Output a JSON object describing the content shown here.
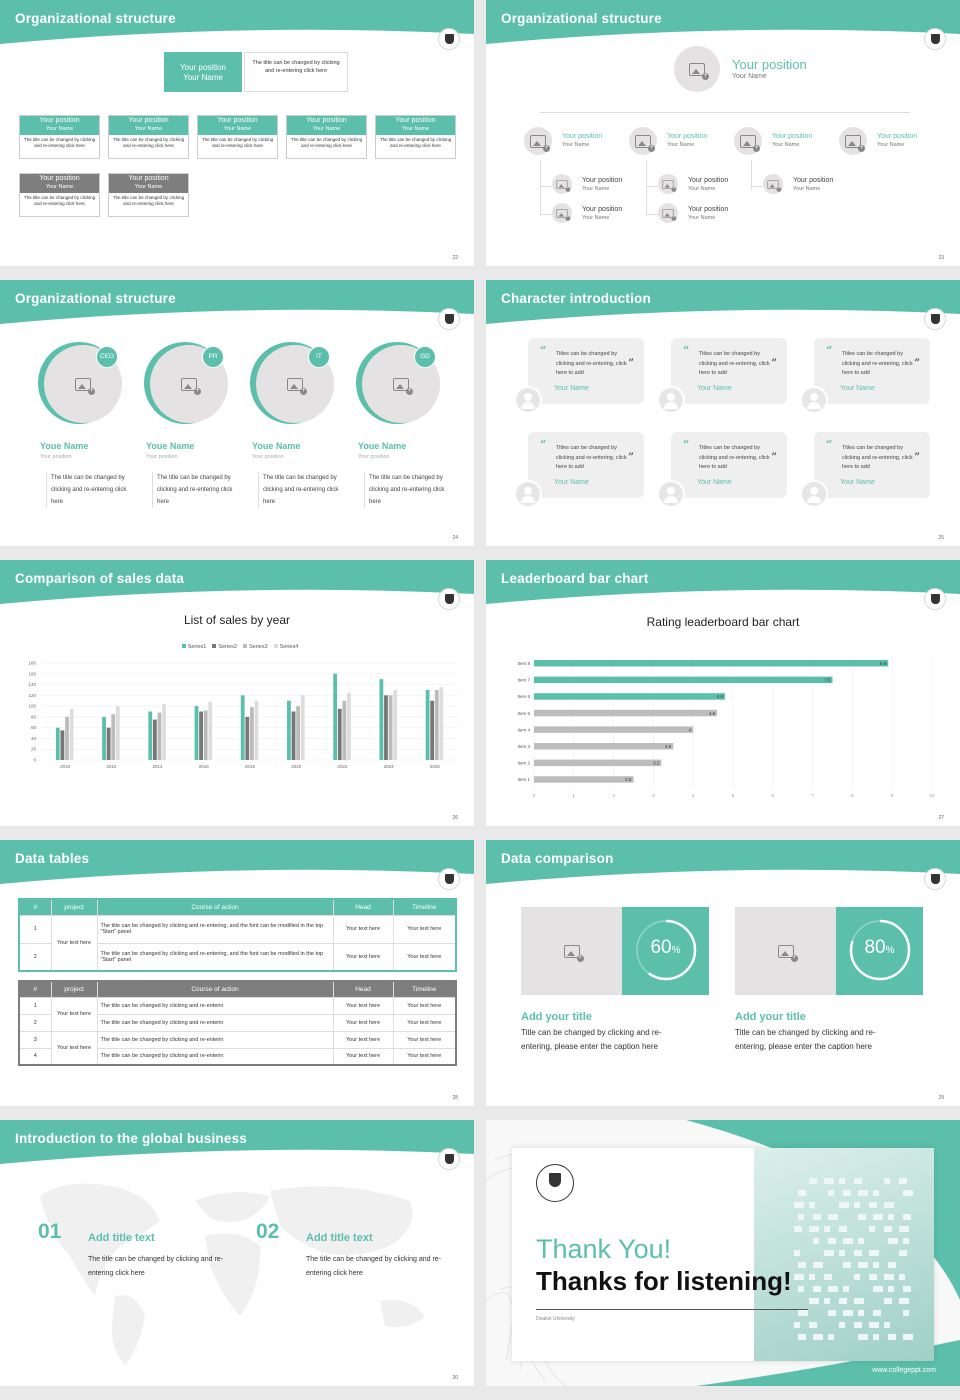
{
  "colors": {
    "teal": "#5bbfac",
    "gray": "#7e7e7e",
    "light_gray": "#bdbdbd",
    "dark_gray": "#888888"
  },
  "icons": [
    "image-placeholder-icon",
    "avatar-icon",
    "university-logo-icon",
    "quote-icon"
  ],
  "slides": {
    "s22": {
      "title": "Organizational structure",
      "page": "22",
      "top": {
        "position": "Your position",
        "name": "Your Name",
        "desc": "The title can be changed by clicking and re-entering click here"
      },
      "cards": [
        {
          "position": "Your position",
          "name": "Your Name",
          "desc": "The title can be changed by clicking and re-entering click here"
        },
        {
          "position": "Your position",
          "name": "Your Name",
          "desc": "The title can be changed by clicking and re-entering click here"
        },
        {
          "position": "Your position",
          "name": "Your Name",
          "desc": "The title can be changed by clicking and re-entering click here"
        },
        {
          "position": "Your position",
          "name": "Your Name",
          "desc": "The title can be changed by clicking and re-entering click here"
        },
        {
          "position": "Your position",
          "name": "Your Name",
          "desc": "The title can be changed by clicking and re-entering click here"
        },
        {
          "position": "Your position",
          "name": "Your Name",
          "desc": "The title can be changed by clicking and re-entering click here"
        },
        {
          "position": "Your position",
          "name": "Your Name",
          "desc": "The title can be changed by clicking and re-entering click here"
        }
      ]
    },
    "s23": {
      "title": "Organizational structure",
      "page": "23",
      "top": {
        "position": "Your position",
        "name": "Your Name"
      },
      "mid": [
        {
          "position": "Your position",
          "name": "Your Name"
        },
        {
          "position": "Your position",
          "name": "Your Name"
        },
        {
          "position": "Your position",
          "name": "Your Name"
        },
        {
          "position": "Your position",
          "name": "Your Name"
        }
      ],
      "sub": [
        {
          "position": "Your position",
          "name": "Your Name"
        },
        {
          "position": "Your position",
          "name": "Your Name"
        },
        {
          "position": "Your position",
          "name": "Your Name"
        },
        {
          "position": "Your position",
          "name": "Your Name"
        },
        {
          "position": "Your position",
          "name": "Your Name"
        }
      ]
    },
    "s24": {
      "title": "Organizational structure",
      "page": "24",
      "members": [
        {
          "badge": "CEO",
          "name": "Youe Name",
          "position": "Your position",
          "desc": "The title can be changed by clicking and re-entering click here"
        },
        {
          "badge": "PR",
          "name": "Youe Name",
          "position": "Your position",
          "desc": "The title can be changed by clicking and re-entering click here"
        },
        {
          "badge": "IT",
          "name": "Youe Name",
          "position": "Your position",
          "desc": "The title can be changed by clicking and re-entering click here"
        },
        {
          "badge": "GD",
          "name": "Youe Name",
          "position": "Your position",
          "desc": "The title can be changed by clicking and re-entering click here"
        }
      ]
    },
    "s25": {
      "title": "Character introduction",
      "page": "25",
      "quotes": [
        {
          "text": "Titles can be changed by clicking and re-entering, click here to add",
          "name": "Your Name"
        },
        {
          "text": "Titles can be changed by clicking and re-entering, click here to add",
          "name": "Your Name"
        },
        {
          "text": "Titles can be changed by clicking and re-entering, click here to add",
          "name": "Your Name"
        },
        {
          "text": "Titles can be changed by clicking and re-entering, click here to add",
          "name": "Your Name"
        },
        {
          "text": "Titles can be changed by clicking and re-entering, click here to add",
          "name": "Your Name"
        },
        {
          "text": "Titles can be changed by clicking and re-entering, click here to add",
          "name": "Your Name"
        }
      ]
    },
    "s26": {
      "title": "Comparison of sales data",
      "page": "26"
    },
    "s27": {
      "title": "Leaderboard bar chart",
      "page": "27"
    },
    "s28": {
      "title": "Data tables",
      "page": "28",
      "table1": {
        "headers": [
          "#",
          "project",
          "Course of action",
          "Head",
          "Timeline"
        ],
        "project": "Your text here",
        "rows": [
          {
            "n": "1",
            "action": "The title can be changed by clicking and re-entering, and the font can be modified in the top \"Start\" panel",
            "head": "Your text here",
            "timeline": "Your text here"
          },
          {
            "n": "2",
            "action": "The title can be changed by clicking and re-entering, and the font can be modified in the top \"Start\" panel",
            "head": "Your text here",
            "timeline": "Your text here"
          }
        ]
      },
      "table2": {
        "headers": [
          "#",
          "project",
          "Course of action",
          "Head",
          "Timeline"
        ],
        "projects": [
          "Your text here",
          "Your text here"
        ],
        "rows": [
          {
            "n": "1",
            "action": "The title can be changed by clicking and re-enterin",
            "head": "Your text here",
            "timeline": "Your text here"
          },
          {
            "n": "2",
            "action": "The title can be changed by clicking and re-enterin",
            "head": "Your text here",
            "timeline": "Your text here"
          },
          {
            "n": "3",
            "action": "The title can be changed by clicking and re-enterin",
            "head": "Your text here",
            "timeline": "Your text here"
          },
          {
            "n": "4",
            "action": "The title can be changed by clicking and re-enterin",
            "head": "Your text here",
            "timeline": "Your text here"
          }
        ]
      }
    },
    "s29": {
      "title": "Data comparison",
      "page": "29",
      "items": [
        {
          "pct": "60",
          "unit": "%",
          "value": 0.6,
          "title": "Add your title",
          "desc": "Title can be changed by clicking and re-entering, please enter the caption here"
        },
        {
          "pct": "80",
          "unit": "%",
          "value": 0.8,
          "title": "Add your title",
          "desc": "Title can be changed by clicking and re-entering, please enter the caption here"
        }
      ]
    },
    "s30": {
      "title": "Introduction to the global business",
      "page": "30",
      "items": [
        {
          "num": "01",
          "title": "Add title text",
          "desc": "The title can be changed by clicking and re-entering click here"
        },
        {
          "num": "02",
          "title": "Add title text",
          "desc": "The title can be changed by clicking and re-entering click here"
        }
      ]
    },
    "s31": {
      "thanks": "Thank You!",
      "sub": "Thanks for listening!",
      "university": "Deakin University",
      "url": "www.collegeppt.com"
    }
  },
  "chart_data": [
    {
      "type": "bar",
      "title": "List of sales by year",
      "categories": [
        "2010",
        "2012",
        "2014",
        "2016",
        "2018",
        "2020",
        "2022",
        "2024",
        "2026"
      ],
      "series": [
        {
          "name": "Series1",
          "values": [
            60,
            80,
            90,
            100,
            120,
            110,
            160,
            150,
            130
          ]
        },
        {
          "name": "Series2",
          "values": [
            55,
            60,
            75,
            90,
            80,
            90,
            95,
            120,
            110
          ]
        },
        {
          "name": "Series3",
          "values": [
            80,
            85,
            88,
            92,
            98,
            100,
            110,
            120,
            130
          ]
        },
        {
          "name": "Series4",
          "values": [
            95,
            100,
            104,
            108,
            110,
            120,
            125,
            130,
            135
          ]
        }
      ],
      "ylim": [
        0,
        180
      ],
      "yticks": [
        "0",
        "20",
        "40",
        "60",
        "80",
        "100",
        "120",
        "140",
        "160",
        "180"
      ],
      "grid": true,
      "legend": "top"
    },
    {
      "type": "bar",
      "orientation": "horizontal",
      "title": "Rating leaderboard bar chart",
      "categories": [
        "Item 8",
        "Item 7",
        "Item 6",
        "Item 5",
        "Item 4",
        "Item 3",
        "Item 2",
        "Item 1"
      ],
      "values": [
        8.9,
        7.5,
        4.8,
        4.6,
        4,
        3.5,
        3.2,
        2.5
      ],
      "labels": [
        "8.9",
        "7.5",
        "4.8",
        "4.6",
        "4",
        "3.5",
        "3.2",
        "2.5"
      ],
      "highlight": [
        true,
        true,
        true,
        false,
        false,
        false,
        false,
        false
      ],
      "xlim": [
        0,
        10
      ],
      "xticks": [
        "0",
        "1",
        "2",
        "3",
        "4",
        "5",
        "6",
        "7",
        "8",
        "9",
        "10"
      ],
      "grid": true
    }
  ]
}
